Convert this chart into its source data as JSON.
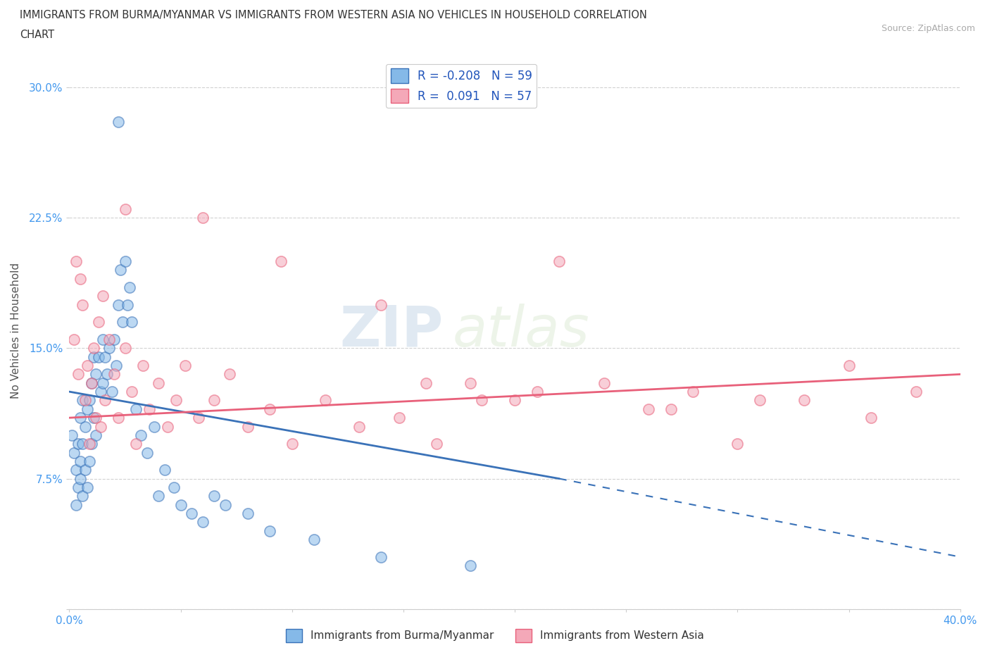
{
  "title_line1": "IMMIGRANTS FROM BURMA/MYANMAR VS IMMIGRANTS FROM WESTERN ASIA NO VEHICLES IN HOUSEHOLD CORRELATION",
  "title_line2": "CHART",
  "source": "Source: ZipAtlas.com",
  "ylabel": "No Vehicles in Household",
  "xlim": [
    0.0,
    0.4
  ],
  "ylim": [
    0.0,
    0.32
  ],
  "xticks": [
    0.0,
    0.05,
    0.1,
    0.15,
    0.2,
    0.25,
    0.3,
    0.35,
    0.4
  ],
  "yticks": [
    0.0,
    0.075,
    0.15,
    0.225,
    0.3
  ],
  "ytick_labels": [
    "",
    "7.5%",
    "15.0%",
    "22.5%",
    "30.0%"
  ],
  "xtick_labels": [
    "0.0%",
    "",
    "",
    "",
    "",
    "",
    "",
    "",
    "40.0%"
  ],
  "color_burma": "#85b9e8",
  "color_western": "#f4a8b8",
  "color_line_burma": "#3a72b8",
  "color_line_western": "#e8607a",
  "R_burma": -0.208,
  "N_burma": 59,
  "R_western": 0.091,
  "N_western": 57,
  "watermark_zip": "ZIP",
  "watermark_atlas": "atlas",
  "legend_label_burma": "Immigrants from Burma/Myanmar",
  "legend_label_western": "Immigrants from Western Asia",
  "burma_x": [
    0.001,
    0.002,
    0.003,
    0.003,
    0.004,
    0.004,
    0.005,
    0.005,
    0.005,
    0.006,
    0.006,
    0.006,
    0.007,
    0.007,
    0.008,
    0.008,
    0.009,
    0.009,
    0.01,
    0.01,
    0.011,
    0.011,
    0.012,
    0.012,
    0.013,
    0.014,
    0.015,
    0.015,
    0.016,
    0.017,
    0.018,
    0.019,
    0.02,
    0.021,
    0.022,
    0.023,
    0.024,
    0.025,
    0.026,
    0.027,
    0.028,
    0.03,
    0.032,
    0.035,
    0.038,
    0.04,
    0.043,
    0.047,
    0.05,
    0.055,
    0.06,
    0.065,
    0.07,
    0.08,
    0.09,
    0.11,
    0.14,
    0.18,
    0.022
  ],
  "burma_y": [
    0.1,
    0.09,
    0.08,
    0.06,
    0.095,
    0.07,
    0.11,
    0.085,
    0.075,
    0.12,
    0.095,
    0.065,
    0.105,
    0.08,
    0.115,
    0.07,
    0.12,
    0.085,
    0.13,
    0.095,
    0.145,
    0.11,
    0.135,
    0.1,
    0.145,
    0.125,
    0.155,
    0.13,
    0.145,
    0.135,
    0.15,
    0.125,
    0.155,
    0.14,
    0.175,
    0.195,
    0.165,
    0.2,
    0.175,
    0.185,
    0.165,
    0.115,
    0.1,
    0.09,
    0.105,
    0.065,
    0.08,
    0.07,
    0.06,
    0.055,
    0.05,
    0.065,
    0.06,
    0.055,
    0.045,
    0.04,
    0.03,
    0.025,
    0.28
  ],
  "western_x": [
    0.002,
    0.004,
    0.005,
    0.006,
    0.007,
    0.008,
    0.009,
    0.01,
    0.011,
    0.012,
    0.013,
    0.014,
    0.015,
    0.016,
    0.018,
    0.02,
    0.022,
    0.025,
    0.028,
    0.03,
    0.033,
    0.036,
    0.04,
    0.044,
    0.048,
    0.052,
    0.058,
    0.065,
    0.072,
    0.08,
    0.09,
    0.1,
    0.115,
    0.13,
    0.148,
    0.165,
    0.185,
    0.21,
    0.24,
    0.27,
    0.3,
    0.33,
    0.36,
    0.003,
    0.025,
    0.06,
    0.095,
    0.18,
    0.22,
    0.28,
    0.14,
    0.2,
    0.26,
    0.31,
    0.35,
    0.38,
    0.16
  ],
  "western_y": [
    0.155,
    0.135,
    0.19,
    0.175,
    0.12,
    0.14,
    0.095,
    0.13,
    0.15,
    0.11,
    0.165,
    0.105,
    0.18,
    0.12,
    0.155,
    0.135,
    0.11,
    0.15,
    0.125,
    0.095,
    0.14,
    0.115,
    0.13,
    0.105,
    0.12,
    0.14,
    0.11,
    0.12,
    0.135,
    0.105,
    0.115,
    0.095,
    0.12,
    0.105,
    0.11,
    0.095,
    0.12,
    0.125,
    0.13,
    0.115,
    0.095,
    0.12,
    0.11,
    0.2,
    0.23,
    0.225,
    0.2,
    0.13,
    0.2,
    0.125,
    0.175,
    0.12,
    0.115,
    0.12,
    0.14,
    0.125,
    0.13
  ],
  "burma_trend_x": [
    0.0,
    0.22,
    0.4
  ],
  "burma_trend_y": [
    0.125,
    0.075,
    0.03
  ],
  "western_trend_x": [
    0.0,
    0.4
  ],
  "western_trend_y": [
    0.11,
    0.135
  ]
}
